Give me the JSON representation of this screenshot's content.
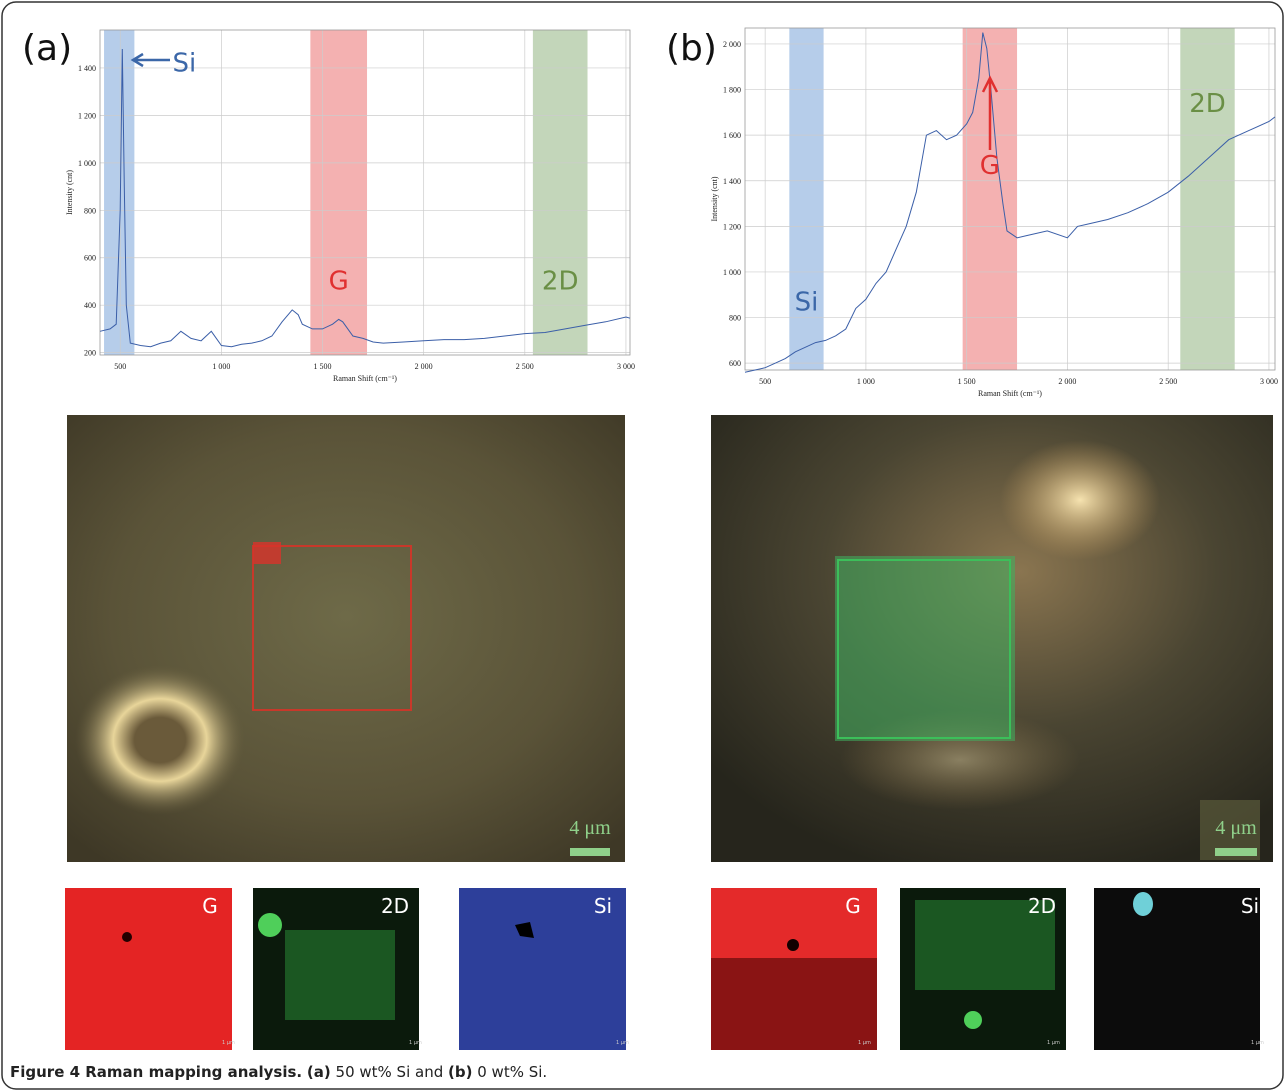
{
  "chart_data": [
    {
      "type": "line",
      "panel_label": "(a)",
      "x_label": "Raman Shift (cm⁻¹)",
      "y_label": "Intensity (cnt)",
      "color": "#3b5fa8",
      "grid": true,
      "x": [
        400,
        450,
        480,
        500,
        510,
        520,
        530,
        550,
        600,
        650,
        700,
        750,
        800,
        850,
        900,
        950,
        1000,
        1050,
        1100,
        1150,
        1200,
        1250,
        1300,
        1350,
        1380,
        1400,
        1450,
        1500,
        1550,
        1580,
        1600,
        1650,
        1700,
        1750,
        1800,
        1900,
        2000,
        2100,
        2200,
        2300,
        2400,
        2500,
        2600,
        2700,
        2800,
        2900,
        3000,
        3020
      ],
      "values": [
        290,
        300,
        320,
        800,
        1480,
        900,
        400,
        240,
        230,
        225,
        240,
        250,
        290,
        260,
        250,
        290,
        230,
        225,
        235,
        240,
        250,
        270,
        330,
        380,
        360,
        320,
        300,
        300,
        320,
        340,
        330,
        270,
        260,
        245,
        240,
        245,
        250,
        255,
        255,
        260,
        270,
        280,
        285,
        300,
        315,
        330,
        350,
        345
      ],
      "xlim": [
        400,
        3020
      ],
      "ylim": [
        190,
        1560
      ],
      "xticks": [
        500,
        {
          "value": 1000,
          "label": "1 000"
        },
        {
          "value": 1500,
          "label": "1 500"
        },
        {
          "value": 2000,
          "label": "2 000"
        },
        {
          "value": 2500,
          "label": "2 500"
        },
        {
          "value": 3000,
          "label": "3 000"
        }
      ],
      "yticks": [
        200,
        400,
        600,
        800,
        {
          "value": 1000,
          "label": "1 000"
        },
        {
          "value": 1200,
          "label": "1 200"
        },
        {
          "value": 1400,
          "label": "1 400"
        }
      ],
      "bands": [
        {
          "label": "Si",
          "color": "#a9c4e6",
          "range": [
            420,
            570
          ]
        },
        {
          "label": "G",
          "color": "#f2a3a3",
          "range": [
            1440,
            1720
          ]
        },
        {
          "label": "2D",
          "color": "#b9cfae",
          "range": [
            2540,
            2810
          ]
        }
      ]
    },
    {
      "type": "line",
      "panel_label": "(b)",
      "x_label": "Raman Shift (cm⁻¹)",
      "y_label": "Intensity (cnt)",
      "color": "#3b5fa8",
      "grid": true,
      "x": [
        400,
        450,
        500,
        550,
        600,
        650,
        700,
        750,
        800,
        850,
        900,
        950,
        1000,
        1050,
        1100,
        1150,
        1200,
        1250,
        1300,
        1350,
        1400,
        1450,
        1500,
        1530,
        1560,
        1580,
        1600,
        1620,
        1650,
        1680,
        1700,
        1750,
        1800,
        1900,
        2000,
        2050,
        2100,
        2200,
        2300,
        2400,
        2500,
        2600,
        2700,
        2800,
        2900,
        3000,
        3030
      ],
      "values": [
        560,
        570,
        580,
        600,
        620,
        650,
        670,
        690,
        700,
        720,
        750,
        840,
        880,
        950,
        1000,
        1100,
        1200,
        1350,
        1600,
        1620,
        1580,
        1600,
        1650,
        1700,
        1850,
        2050,
        1980,
        1800,
        1500,
        1300,
        1180,
        1150,
        1160,
        1180,
        1150,
        1200,
        1210,
        1230,
        1260,
        1300,
        1350,
        1420,
        1500,
        1580,
        1620,
        1660,
        1680
      ],
      "xlim": [
        400,
        3030
      ],
      "ylim": [
        570,
        2070
      ],
      "xticks": [
        500,
        {
          "value": 1000,
          "label": "1 000"
        },
        {
          "value": 1500,
          "label": "1 500"
        },
        {
          "value": 2000,
          "label": "2 000"
        },
        {
          "value": 2500,
          "label": "2 500"
        },
        {
          "value": 3000,
          "label": "3 000"
        }
      ],
      "yticks": [
        600,
        800,
        {
          "value": 1000,
          "label": "1 000"
        },
        {
          "value": 1200,
          "label": "1 200"
        },
        {
          "value": 1400,
          "label": "1 400"
        },
        {
          "value": 1600,
          "label": "1 600"
        },
        {
          "value": 1800,
          "label": "1 800"
        },
        {
          "value": 2000,
          "label": "2 000"
        }
      ],
      "bands": [
        {
          "label": "Si",
          "color": "#a9c4e6",
          "range": [
            620,
            790
          ]
        },
        {
          "label": "G",
          "color": "#f2a3a3",
          "range": [
            1480,
            1750
          ]
        },
        {
          "label": "2D",
          "color": "#b9cfae",
          "range": [
            2560,
            2830
          ]
        }
      ]
    }
  ],
  "images": {
    "scale_a": "4 μm",
    "scale_b": "4 μm",
    "maps_a": [
      "G",
      "2D",
      "Si"
    ],
    "maps_b": [
      "G",
      "2D",
      "Si"
    ],
    "map_scale": "1 μm"
  },
  "caption": {
    "figure": "Figure 4 Raman mapping analysis.",
    "a": "(a)",
    "text_a": " 50 wt% Si and ",
    "b": "(b)",
    "text_b": " 0 wt% Si."
  }
}
